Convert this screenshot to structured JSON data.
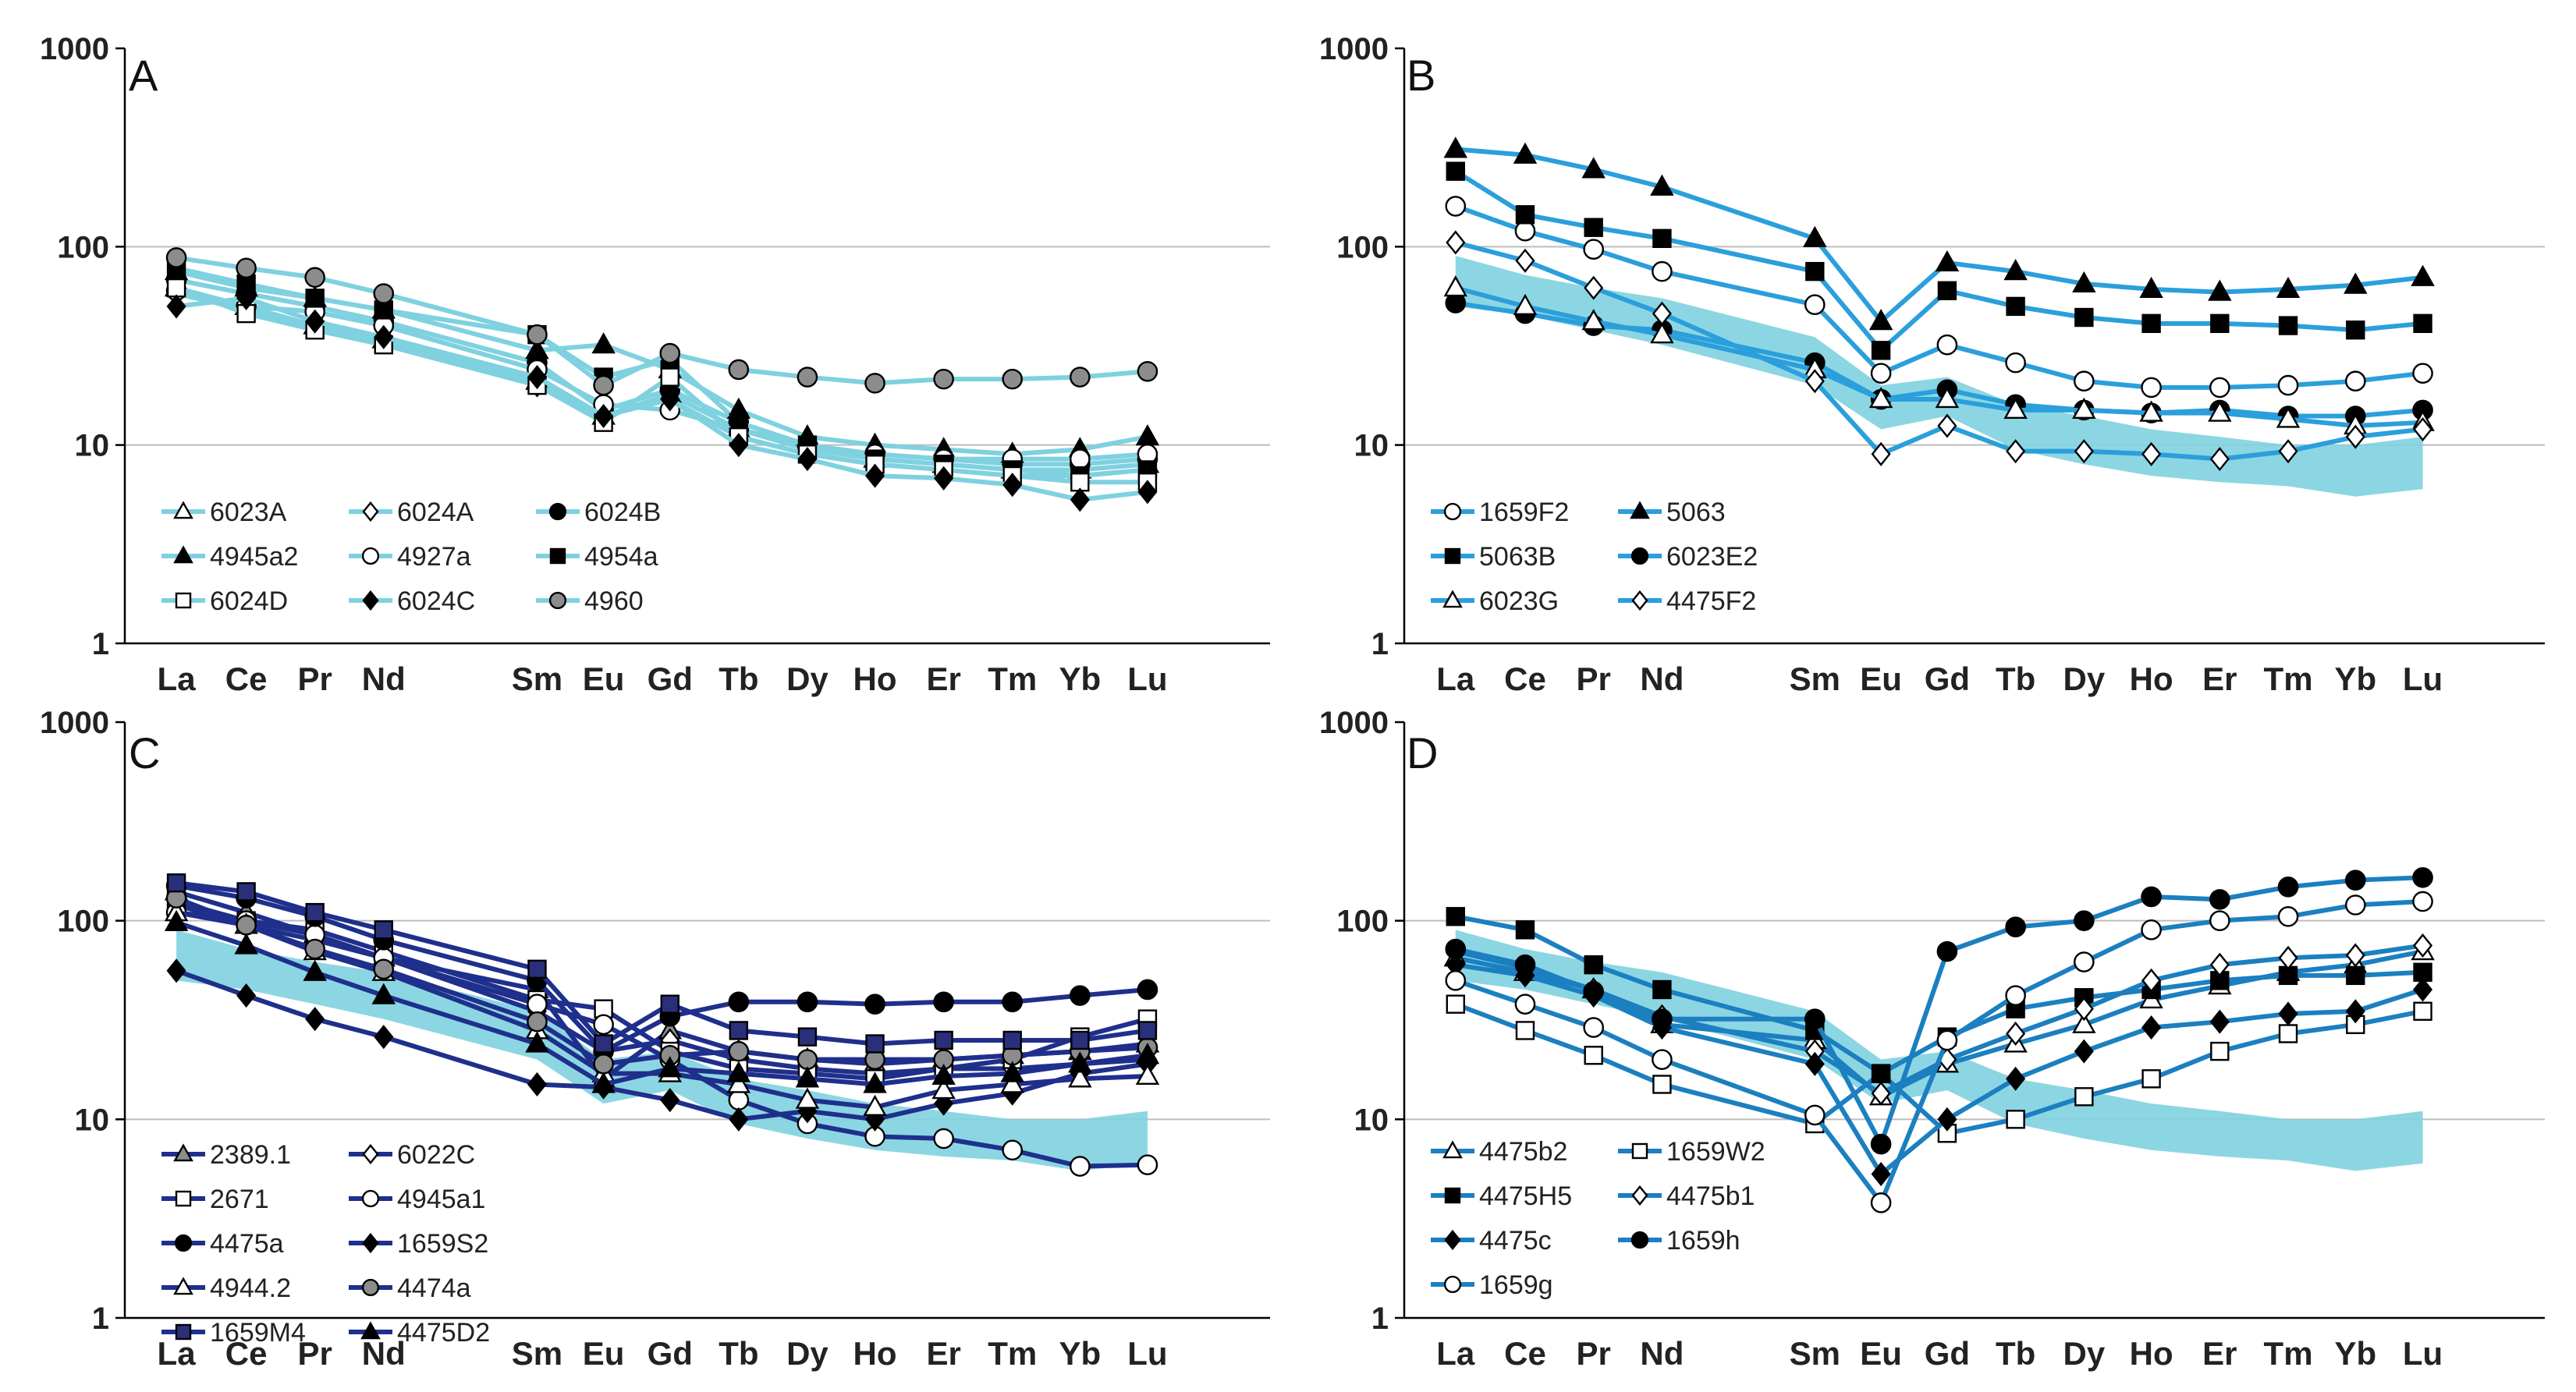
{
  "chart_data": [
    {
      "type": "line",
      "panel": "A",
      "yscale": "log",
      "ylim": [
        1,
        1000
      ],
      "yticks": [
        "1",
        "10",
        "100",
        "1000"
      ],
      "categories": [
        "La",
        "Ce",
        "Pr",
        "Nd",
        "Sm",
        "Eu",
        "Gd",
        "Tb",
        "Dy",
        "Ho",
        "Er",
        "Tm",
        "Yb",
        "Lu"
      ],
      "line_color": "#7fd1e0",
      "series": [
        {
          "name": "6023A",
          "marker": "triangle",
          "fill": "white",
          "values": [
            62,
            50,
            40,
            34,
            21,
            14,
            18,
            12,
            9.5,
            8.5,
            8,
            7.5,
            7.5,
            8
          ]
        },
        {
          "name": "6024A",
          "marker": "diamond",
          "fill": "white",
          "values": [
            58,
            48,
            39,
            33,
            20,
            14,
            17,
            11,
            9,
            8,
            7.5,
            7,
            7,
            7.5
          ]
        },
        {
          "name": "6024B",
          "marker": "circle",
          "fill": "black",
          "values": [
            68,
            58,
            50,
            42,
            26,
            15,
            19,
            13,
            10,
            9,
            8.5,
            8,
            8,
            8.5
          ]
        },
        {
          "name": "4945a2",
          "marker": "triangle",
          "fill": "black",
          "values": [
            75,
            62,
            55,
            48,
            30,
            32,
            24,
            15,
            11,
            10,
            9.5,
            9,
            9.5,
            11
          ]
        },
        {
          "name": "4927a",
          "marker": "circle",
          "fill": "white",
          "values": [
            60,
            50,
            47,
            40,
            24,
            16,
            15,
            12,
            10,
            9,
            8.5,
            8.5,
            8.5,
            9
          ]
        },
        {
          "name": "4954a",
          "marker": "square",
          "fill": "black",
          "values": [
            78,
            65,
            55,
            48,
            36,
            22,
            27,
            13,
            10,
            8.5,
            8,
            7.5,
            7,
            7.5
          ]
        },
        {
          "name": "6024D",
          "marker": "square",
          "fill": "white",
          "values": [
            62,
            46,
            38,
            32,
            20,
            13,
            22,
            11,
            9,
            8,
            7.5,
            7,
            6.5,
            6.5
          ]
        },
        {
          "name": "6024C",
          "marker": "diamond",
          "fill": "black",
          "values": [
            50,
            55,
            42,
            35,
            22,
            14,
            17,
            10,
            8.5,
            7,
            6.8,
            6.3,
            5.3,
            5.8
          ]
        },
        {
          "name": "4960",
          "marker": "circle",
          "fill": "grey",
          "values": [
            88,
            78,
            70,
            58,
            36,
            20,
            29,
            24,
            22,
            20.5,
            21.5,
            21.5,
            22,
            23.5
          ]
        }
      ]
    },
    {
      "type": "line",
      "panel": "B",
      "yscale": "log",
      "ylim": [
        1,
        1000
      ],
      "yticks": [
        "1",
        "10",
        "100",
        "1000"
      ],
      "categories": [
        "La",
        "Ce",
        "Pr",
        "Nd",
        "Sm",
        "Eu",
        "Gd",
        "Tb",
        "Dy",
        "Ho",
        "Er",
        "Tm",
        "Yb",
        "Lu"
      ],
      "line_color": "#2a9fdb",
      "band_color": "#7fd1e0",
      "band_upper": [
        90,
        72,
        62,
        55,
        35,
        20,
        22,
        16,
        14,
        12,
        11,
        10,
        10,
        11
      ],
      "band_lower": [
        50,
        45,
        38,
        32,
        20,
        12,
        14,
        9.5,
        8,
        7,
        6.5,
        6.2,
        5.5,
        6
      ],
      "series": [
        {
          "name": "1659F2",
          "marker": "circle",
          "fill": "white",
          "values": [
            160,
            120,
            97,
            75,
            51,
            23,
            32,
            26,
            21,
            19.5,
            19.5,
            20,
            21,
            23
          ]
        },
        {
          "name": "5063",
          "marker": "triangle",
          "fill": "black",
          "values": [
            310,
            290,
            245,
            200,
            110,
            42,
            83,
            75,
            65,
            61,
            59,
            61,
            64,
            70
          ]
        },
        {
          "name": "5063B",
          "marker": "square",
          "fill": "black",
          "values": [
            240,
            145,
            125,
            110,
            75,
            30,
            60,
            50,
            44,
            41,
            41,
            40,
            38,
            41
          ]
        },
        {
          "name": "6023E2",
          "marker": "circle",
          "fill": "black",
          "values": [
            52,
            46,
            40,
            38,
            26,
            17,
            19,
            16,
            15,
            14.5,
            15,
            14,
            14,
            15
          ]
        },
        {
          "name": "6023G",
          "marker": "triangle",
          "fill": "white",
          "values": [
            62,
            50,
            42,
            36,
            24,
            17,
            17,
            15,
            15,
            14.5,
            14.5,
            13.5,
            12.5,
            13
          ]
        },
        {
          "name": "4475F2",
          "marker": "diamond",
          "fill": "white",
          "values": [
            105,
            85,
            62,
            46,
            21,
            9,
            12.5,
            9.3,
            9.3,
            9,
            8.5,
            9.3,
            11,
            12
          ]
        }
      ]
    },
    {
      "type": "line",
      "panel": "C",
      "yscale": "log",
      "ylim": [
        1,
        1000
      ],
      "yticks": [
        "1",
        "10",
        "100",
        "1000"
      ],
      "categories": [
        "La",
        "Ce",
        "Pr",
        "Nd",
        "Sm",
        "Eu",
        "Gd",
        "Tb",
        "Dy",
        "Ho",
        "Er",
        "Tm",
        "Yb",
        "Lu"
      ],
      "line_color": "#1f2f8c",
      "band_color": "#7fd1e0",
      "band_upper": [
        90,
        72,
        62,
        55,
        35,
        20,
        22,
        16,
        14,
        12,
        11,
        10,
        10,
        11
      ],
      "band_lower": [
        50,
        45,
        38,
        32,
        20,
        12,
        14,
        9.5,
        8,
        7,
        6.5,
        6.2,
        5.5,
        6
      ],
      "series": [
        {
          "name": "2389.1",
          "marker": "triangle",
          "fill": "grey",
          "values": [
            140,
            110,
            85,
            65,
            45,
            16,
            28,
            22,
            20,
            19,
            20,
            21,
            22,
            24
          ]
        },
        {
          "name": "6022C",
          "marker": "diamond",
          "fill": "white",
          "values": [
            120,
            95,
            80,
            65,
            35,
            22,
            25,
            20,
            18,
            17,
            18,
            18,
            19,
            20
          ]
        },
        {
          "name": "2671",
          "marker": "square",
          "fill": "white",
          "values": [
            125,
            100,
            90,
            70,
            40,
            36,
            22,
            18,
            17,
            16,
            18,
            20,
            26,
            32
          ]
        },
        {
          "name": "4945a1",
          "marker": "circle",
          "fill": "white",
          "values": [
            110,
            100,
            85,
            65,
            38,
            30,
            20,
            12.5,
            9.5,
            8.2,
            8,
            7,
            5.8,
            5.9
          ]
        },
        {
          "name": "4475a",
          "marker": "circle",
          "fill": "black",
          "values": [
            150,
            130,
            105,
            80,
            50,
            22,
            33,
            39,
            39,
            38,
            39,
            39,
            42,
            45
          ]
        },
        {
          "name": "1659S2",
          "marker": "diamond",
          "fill": "black",
          "values": [
            56,
            42,
            32,
            26,
            15,
            14.5,
            12.5,
            10,
            11,
            10,
            12,
            13.5,
            17,
            19
          ]
        },
        {
          "name": "4944.2",
          "marker": "triangle",
          "fill": "white",
          "values": [
            110,
            95,
            70,
            55,
            28,
            17,
            17,
            15,
            12.5,
            11.5,
            14,
            15,
            16,
            16.5
          ]
        },
        {
          "name": "4474a",
          "marker": "circle",
          "fill": "grey",
          "values": [
            130,
            95,
            72,
            57,
            31,
            19,
            21,
            22,
            20,
            20,
            20,
            21,
            22,
            23
          ]
        },
        {
          "name": "1659M4",
          "marker": "square",
          "fill": "navy",
          "values": [
            155,
            140,
            110,
            90,
            57,
            24,
            38,
            28,
            26,
            24,
            25,
            25,
            25,
            28
          ]
        },
        {
          "name": "4475D2",
          "marker": "triangle",
          "fill": "black",
          "values": [
            98,
            75,
            55,
            42,
            24,
            15,
            18,
            17,
            16,
            15,
            16.5,
            17,
            19,
            21
          ]
        }
      ]
    },
    {
      "type": "line",
      "panel": "D",
      "yscale": "log",
      "ylim": [
        1,
        1000
      ],
      "yticks": [
        "1",
        "10",
        "100",
        "1000"
      ],
      "categories": [
        "La",
        "Ce",
        "Pr",
        "Nd",
        "Sm",
        "Eu",
        "Gd",
        "Tb",
        "Dy",
        "Ho",
        "Er",
        "Tm",
        "Yb",
        "Lu"
      ],
      "line_color": "#1b7fc0",
      "band_color": "#7fd1e0",
      "band_upper": [
        90,
        72,
        62,
        55,
        35,
        20,
        22,
        16,
        14,
        12,
        11,
        10,
        10,
        11
      ],
      "band_lower": [
        50,
        45,
        38,
        32,
        20,
        12,
        14,
        9.5,
        8,
        7,
        6.5,
        6.2,
        5.5,
        6
      ],
      "series": [
        {
          "name": "4475b2",
          "marker": "triangle",
          "fill": "white",
          "values": [
            65,
            55,
            45,
            30,
            25,
            13,
            19,
            24,
            30,
            40,
            47,
            55,
            60,
            70
          ]
        },
        {
          "name": "1659W2",
          "marker": "square",
          "fill": "white",
          "values": [
            38,
            28,
            21,
            15,
            9.5,
            17,
            8.5,
            10,
            13,
            16,
            22,
            27,
            30,
            35
          ]
        },
        {
          "name": "4475H5",
          "marker": "square",
          "fill": "black",
          "values": [
            105,
            90,
            60,
            45,
            28,
            17,
            26,
            36,
            41,
            45,
            50,
            53,
            53,
            55
          ]
        },
        {
          "name": "4475b1",
          "marker": "diamond",
          "fill": "white",
          "values": [
            70,
            58,
            45,
            33,
            22,
            13.5,
            20,
            27,
            36,
            50,
            60,
            65,
            67,
            75
          ]
        },
        {
          "name": "4475c",
          "marker": "diamond",
          "fill": "black",
          "values": [
            60,
            53,
            42,
            29,
            19,
            5.3,
            10,
            16,
            22,
            29,
            31,
            34,
            35,
            45
          ]
        },
        {
          "name": "1659h",
          "marker": "circle",
          "fill": "black",
          "values": [
            72,
            60,
            44,
            32,
            32,
            7.5,
            70,
            93,
            100,
            132,
            128,
            148,
            160,
            165
          ]
        },
        {
          "name": "1659g",
          "marker": "circle",
          "fill": "white",
          "values": [
            50,
            38,
            29,
            20,
            10.5,
            3.8,
            25,
            42,
            62,
            90,
            100,
            105,
            120,
            125
          ]
        }
      ]
    }
  ],
  "legend_colors": {
    "A": "#7fd1e0",
    "B": "#2a9fdb",
    "C": "#1f2f8c",
    "D": "#1b7fc0"
  }
}
